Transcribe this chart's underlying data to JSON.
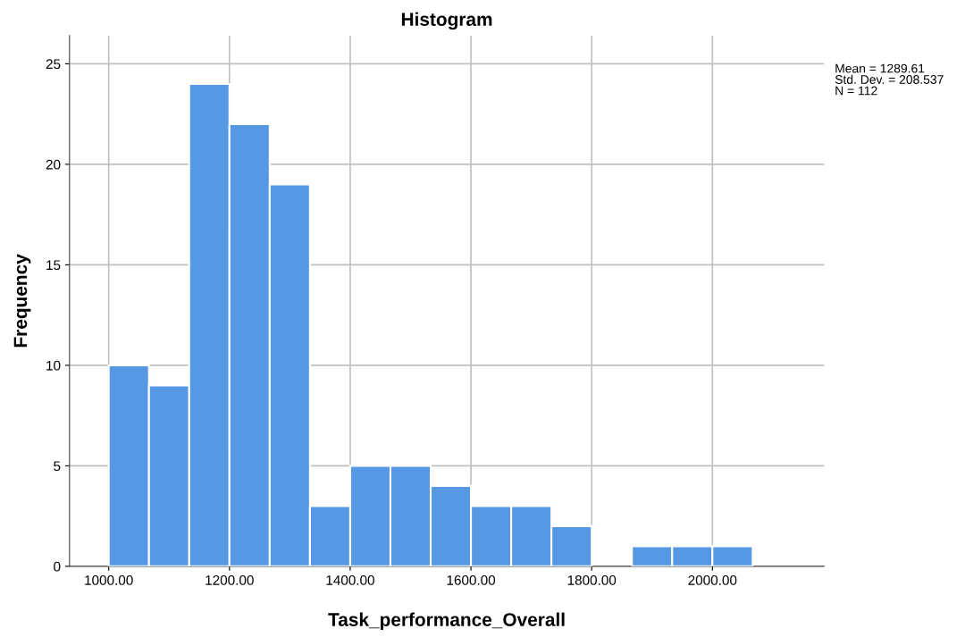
{
  "chart_data": {
    "type": "histogram",
    "title": "Histogram",
    "xlabel": "Task_performance_Overall",
    "ylabel": "Frequency",
    "bins": [
      1000,
      1066.67,
      1133.33,
      1200,
      1266.67,
      1333.33,
      1400,
      1466.67,
      1533.33,
      1600,
      1666.67,
      1733.33,
      1800,
      1866.67,
      1933.33,
      2000,
      2066.67
    ],
    "values": [
      10,
      9,
      24,
      22,
      19,
      3,
      5,
      5,
      4,
      3,
      3,
      2,
      0,
      1,
      1,
      1
    ],
    "color": "#5698e3",
    "xlim": [
      935,
      2185
    ],
    "xticks": [
      {
        "value": 1000,
        "label": "1000.00"
      },
      {
        "value": 1200,
        "label": "1200.00"
      },
      {
        "value": 1400,
        "label": "1400.00"
      },
      {
        "value": 1600,
        "label": "1600.00"
      },
      {
        "value": 1800,
        "label": "1800.00"
      },
      {
        "value": 2000,
        "label": "2000.00"
      }
    ],
    "ylim": [
      0,
      26.4
    ],
    "yticks": [
      0,
      5,
      10,
      15,
      20,
      25
    ],
    "grid": true,
    "annotations": [
      "Mean = 1289.61\nStd. Dev. = 208.537\nN = 112"
    ]
  }
}
